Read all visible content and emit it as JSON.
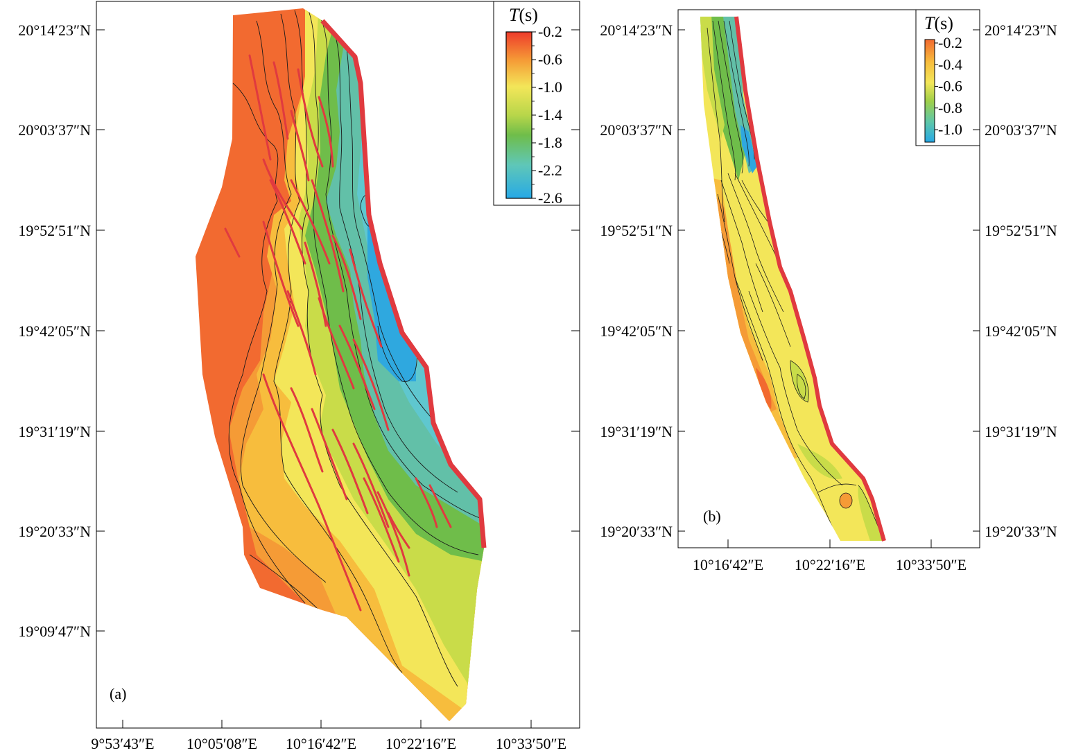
{
  "panel_a": {
    "label": "(a)",
    "lat_labels": [
      "20°14′23″N",
      "20°03′37″N",
      "19°52′51″N",
      "19°42′05″N",
      "19°31′19″N",
      "19°20′33″N",
      "19°09′47″N"
    ],
    "lon_labels": [
      "9°53′43″E",
      "10°05′08″E",
      "10°16′42″E",
      "10°22′16″E",
      "10°33′50″E"
    ],
    "colorbar": {
      "title": "T(s)",
      "ticks": [
        "-0.2",
        "-0.6",
        "-1.0",
        "-1.4",
        "-1.8",
        "-2.2",
        "-2.6"
      ],
      "range": [
        -0.2,
        -2.6
      ]
    }
  },
  "panel_b": {
    "label": "(b)",
    "lat_labels_left": [
      "20°14′23″N",
      "20°03′37″N",
      "19°52′51″N",
      "19°42′05″N",
      "19°31′19″N",
      "19°20′33″N"
    ],
    "lat_labels_right": [
      "20°14′23″N",
      "20°03′37″N",
      "19°52′51″N",
      "19°42′05″N",
      "19°31′19″N",
      "19°20′33″N"
    ],
    "lon_labels": [
      "10°16′42″E",
      "10°22′16″E",
      "10°33′50″E"
    ],
    "colorbar": {
      "title": "T(s)",
      "ticks": [
        "-0.2",
        "-0.4",
        "-0.6",
        "-0.8",
        "-1.0"
      ],
      "range": [
        -0.2,
        -1.05
      ]
    }
  },
  "colors": {
    "orange_red": "#f26a30",
    "orange": "#f59b36",
    "light_orange": "#f7bd3d",
    "yellow": "#f3e659",
    "yellow_green": "#c9dc49",
    "green": "#6fbd4a",
    "teal": "#62c0a8",
    "cyan": "#5fc7cf",
    "blue": "#2fa8df",
    "fault_red": "#e03a3f"
  }
}
